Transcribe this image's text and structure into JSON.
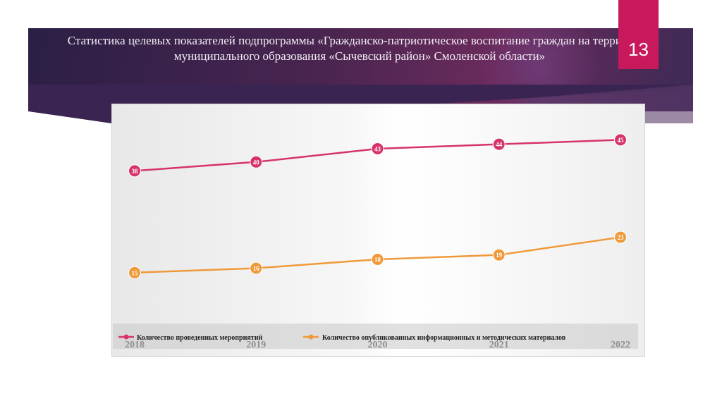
{
  "slide": {
    "title": "Статистика целевых показателей подпрограммы «Гражданско-патриотическое воспитание граждан на территории муниципального образования «Сычевский район» Смоленской области»",
    "page_number": "13"
  },
  "colors": {
    "banner": "#3d2450",
    "page_tab": "#c8195c",
    "series_1": "#d6336c",
    "series_2": "#ee9a3a"
  },
  "chart_data": {
    "type": "line",
    "categories": [
      "2018",
      "2019",
      "2020",
      "2021",
      "2022"
    ],
    "series": [
      {
        "name": "Количество проведенных мероприятий",
        "values": [
          38,
          40,
          43,
          44,
          45
        ]
      },
      {
        "name": "Количество опубликованных информационных и методических материалов",
        "values": [
          15,
          16,
          18,
          19,
          23
        ]
      }
    ],
    "ylim": [
      0,
      50
    ],
    "grid": false,
    "legend": "bottom"
  }
}
